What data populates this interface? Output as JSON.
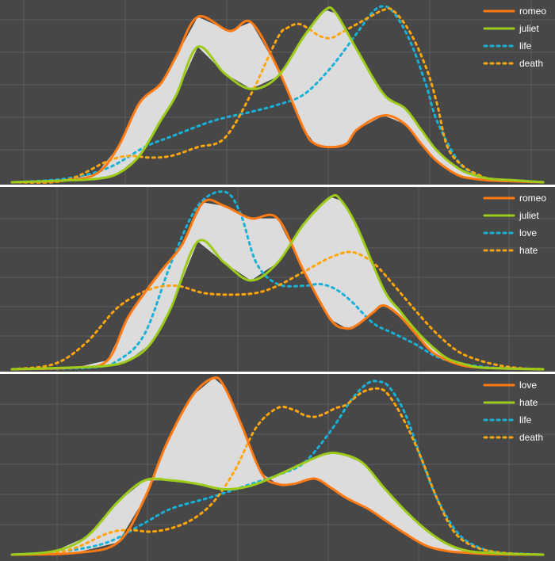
{
  "chart_data": [
    {
      "type": "line",
      "xlim": [
        0,
        100
      ],
      "ylim": [
        0,
        1
      ],
      "grid": true,
      "legend_position": "top-right",
      "fill_between": [
        "romeo",
        "juliet"
      ],
      "series": [
        {
          "name": "romeo",
          "color": "#ff7a12",
          "style": "solid",
          "x": [
            0,
            10,
            16,
            20,
            24,
            28,
            31,
            35,
            41,
            45,
            50,
            55,
            57,
            60,
            63,
            65,
            70,
            74,
            77,
            80,
            84,
            87,
            90,
            95,
            100
          ],
          "y": [
            0,
            0.01,
            0.05,
            0.2,
            0.45,
            0.56,
            0.72,
            0.94,
            0.86,
            0.91,
            0.65,
            0.3,
            0.22,
            0.2,
            0.22,
            0.3,
            0.38,
            0.33,
            0.22,
            0.12,
            0.04,
            0.02,
            0.01,
            0.005,
            0
          ]
        },
        {
          "name": "juliet",
          "color": "#9ccb19",
          "style": "solid",
          "x": [
            0,
            10,
            16,
            20,
            24,
            28,
            31,
            35,
            40,
            45,
            50,
            55,
            59,
            61,
            65,
            70,
            74,
            77,
            80,
            84,
            87,
            90,
            95,
            100
          ],
          "y": [
            0,
            0.01,
            0.02,
            0.05,
            0.15,
            0.35,
            0.5,
            0.77,
            0.62,
            0.53,
            0.6,
            0.83,
            0.98,
            0.96,
            0.75,
            0.5,
            0.42,
            0.3,
            0.18,
            0.08,
            0.04,
            0.02,
            0.01,
            0
          ]
        },
        {
          "name": "life",
          "color": "#18b1d8",
          "style": "dotted",
          "x": [
            0,
            10,
            18,
            25,
            30,
            38,
            45,
            50,
            55,
            60,
            65,
            68,
            70,
            72,
            75,
            78,
            80,
            84,
            87,
            90,
            95,
            100
          ],
          "y": [
            0,
            0.02,
            0.08,
            0.2,
            0.26,
            0.35,
            0.4,
            0.44,
            0.5,
            0.65,
            0.85,
            0.97,
            1.0,
            0.96,
            0.8,
            0.55,
            0.35,
            0.12,
            0.05,
            0.02,
            0.01,
            0
          ]
        },
        {
          "name": "death",
          "color": "#ffa50c",
          "style": "dotted",
          "x": [
            0,
            10,
            18,
            22,
            26,
            30,
            35,
            40,
            45,
            50,
            52,
            54,
            56,
            58,
            60,
            62,
            65,
            70,
            72,
            75,
            78,
            80,
            82,
            85,
            88,
            90,
            95,
            100
          ],
          "y": [
            0,
            0.01,
            0.12,
            0.15,
            0.14,
            0.15,
            0.2,
            0.25,
            0.5,
            0.82,
            0.88,
            0.9,
            0.87,
            0.83,
            0.82,
            0.85,
            0.9,
            0.98,
            0.97,
            0.85,
            0.65,
            0.45,
            0.2,
            0.09,
            0.04,
            0.02,
            0.01,
            0
          ]
        }
      ]
    },
    {
      "type": "line",
      "xlim": [
        0,
        100
      ],
      "ylim": [
        0,
        1
      ],
      "grid": true,
      "legend_position": "top-right",
      "fill_between": [
        "romeo",
        "juliet"
      ],
      "series": [
        {
          "name": "romeo",
          "color": "#ff7a12",
          "style": "solid",
          "x": [
            0,
            12,
            18,
            22,
            28,
            32,
            36,
            40,
            45,
            50,
            55,
            60,
            63,
            65,
            68,
            70,
            73,
            76,
            79,
            82,
            85,
            88,
            92,
            100
          ],
          "y": [
            0,
            0.01,
            0.05,
            0.3,
            0.55,
            0.7,
            0.94,
            0.92,
            0.85,
            0.85,
            0.55,
            0.28,
            0.23,
            0.25,
            0.32,
            0.36,
            0.3,
            0.2,
            0.1,
            0.05,
            0.02,
            0.01,
            0.005,
            0
          ]
        },
        {
          "name": "juliet",
          "color": "#9ccb19",
          "style": "solid",
          "x": [
            0,
            12,
            18,
            22,
            26,
            30,
            35,
            40,
            45,
            50,
            55,
            60,
            62,
            65,
            70,
            73,
            76,
            79,
            82,
            85,
            88,
            92,
            100
          ],
          "y": [
            0,
            0.01,
            0.02,
            0.05,
            0.14,
            0.35,
            0.72,
            0.6,
            0.5,
            0.6,
            0.82,
            0.97,
            0.95,
            0.8,
            0.45,
            0.33,
            0.22,
            0.13,
            0.06,
            0.03,
            0.01,
            0.005,
            0
          ]
        },
        {
          "name": "love",
          "color": "#18b1d8",
          "style": "dotted",
          "x": [
            0,
            15,
            20,
            25,
            30,
            35,
            40,
            43,
            46,
            50,
            55,
            58,
            61,
            64,
            68,
            72,
            76,
            80,
            85,
            90,
            95,
            100
          ],
          "y": [
            0,
            0.01,
            0.05,
            0.2,
            0.6,
            0.92,
            1.0,
            0.88,
            0.6,
            0.48,
            0.47,
            0.48,
            0.45,
            0.38,
            0.26,
            0.2,
            0.14,
            0.07,
            0.03,
            0.01,
            0.005,
            0
          ]
        },
        {
          "name": "hate",
          "color": "#ffa50c",
          "style": "dotted",
          "x": [
            0,
            8,
            14,
            20,
            26,
            31,
            36,
            41,
            46,
            50,
            55,
            60,
            64,
            68,
            72,
            76,
            80,
            84,
            88,
            92,
            96,
            100
          ],
          "y": [
            0,
            0.03,
            0.15,
            0.35,
            0.45,
            0.47,
            0.43,
            0.42,
            0.43,
            0.47,
            0.55,
            0.63,
            0.66,
            0.6,
            0.47,
            0.33,
            0.2,
            0.1,
            0.05,
            0.02,
            0.005,
            0
          ]
        }
      ]
    },
    {
      "type": "line",
      "xlim": [
        0,
        100
      ],
      "ylim": [
        0,
        1
      ],
      "grid": true,
      "legend_position": "top-right",
      "fill_between": [
        "love",
        "hate"
      ],
      "series": [
        {
          "name": "love",
          "color": "#ff7a12",
          "style": "solid",
          "x": [
            0,
            12,
            20,
            25,
            29,
            34,
            38,
            40,
            43,
            47,
            50,
            53,
            57,
            60,
            63,
            67,
            70,
            74,
            78,
            82,
            86,
            90,
            100
          ],
          "y": [
            0,
            0.01,
            0.07,
            0.32,
            0.62,
            0.9,
            1.0,
            0.95,
            0.75,
            0.46,
            0.4,
            0.4,
            0.43,
            0.38,
            0.32,
            0.26,
            0.2,
            0.12,
            0.05,
            0.02,
            0.01,
            0.003,
            0
          ]
        },
        {
          "name": "hate",
          "color": "#9ccb19",
          "style": "solid",
          "x": [
            0,
            8,
            14,
            20,
            25,
            30,
            35,
            40,
            45,
            50,
            55,
            59,
            62,
            66,
            70,
            74,
            78,
            82,
            86,
            90,
            95,
            100
          ],
          "y": [
            0,
            0.02,
            0.1,
            0.3,
            0.42,
            0.42,
            0.4,
            0.37,
            0.39,
            0.45,
            0.52,
            0.57,
            0.57,
            0.52,
            0.38,
            0.25,
            0.14,
            0.06,
            0.02,
            0.01,
            0.003,
            0
          ]
        },
        {
          "name": "life",
          "color": "#18b1d8",
          "style": "dotted",
          "x": [
            0,
            10,
            18,
            25,
            30,
            38,
            45,
            50,
            55,
            60,
            64,
            67,
            69,
            71,
            74,
            77,
            80,
            84,
            88,
            92,
            96,
            100
          ],
          "y": [
            0,
            0.02,
            0.07,
            0.18,
            0.26,
            0.33,
            0.4,
            0.45,
            0.52,
            0.7,
            0.88,
            0.97,
            0.98,
            0.95,
            0.8,
            0.55,
            0.32,
            0.12,
            0.04,
            0.01,
            0.005,
            0
          ]
        },
        {
          "name": "death",
          "color": "#ffa50c",
          "style": "dotted",
          "x": [
            0,
            10,
            18,
            22,
            26,
            30,
            34,
            38,
            42,
            46,
            50,
            53,
            55,
            57,
            59,
            61,
            63,
            66,
            69,
            71,
            74,
            77,
            80,
            83,
            86,
            90,
            95,
            100
          ],
          "y": [
            0,
            0.02,
            0.12,
            0.14,
            0.13,
            0.15,
            0.2,
            0.3,
            0.48,
            0.72,
            0.83,
            0.82,
            0.79,
            0.78,
            0.8,
            0.83,
            0.85,
            0.92,
            0.94,
            0.9,
            0.75,
            0.55,
            0.32,
            0.14,
            0.06,
            0.02,
            0.005,
            0
          ]
        }
      ]
    }
  ]
}
